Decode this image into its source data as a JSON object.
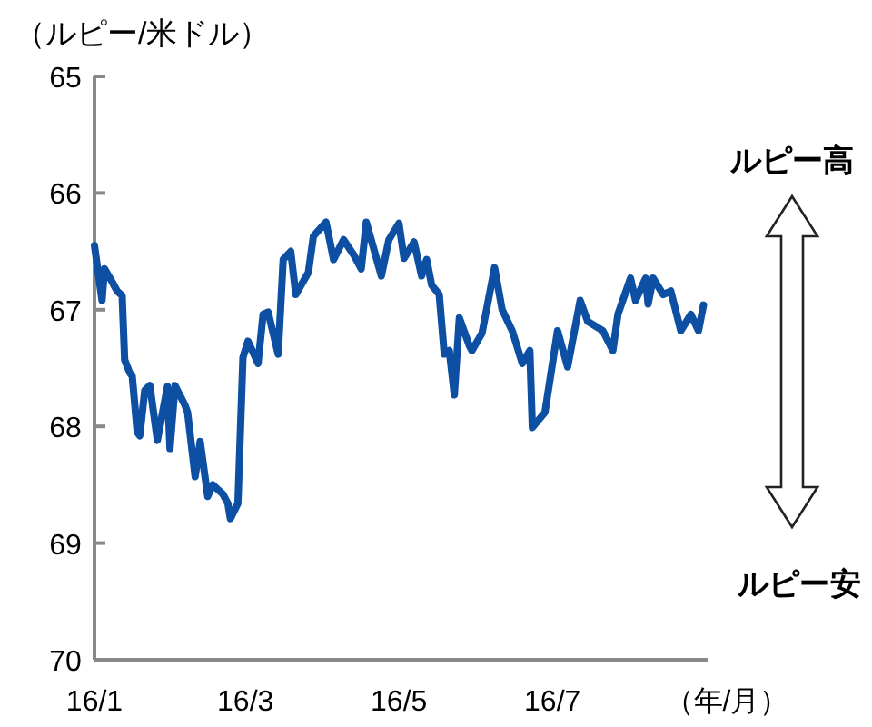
{
  "chart_data": {
    "type": "line",
    "ylabel": "（ルピー/米ドル）",
    "xlabel": "（年/月）",
    "annotations": [
      "ルピー高",
      "ルピー安"
    ],
    "xlim": [
      "--01-01",
      "--09-01"
    ],
    "xticks": [
      {
        "value": "--01-01",
        "label": "16/1"
      },
      {
        "value": "--03-01",
        "label": "16/3"
      },
      {
        "value": "--05-01",
        "label": "16/5"
      },
      {
        "value": "--07-01",
        "label": "16/7"
      }
    ],
    "ylim": [
      70,
      65
    ],
    "yticks": [
      65,
      66,
      67,
      68,
      69,
      70
    ],
    "grid": false,
    "marker": "none",
    "line_style": "solid",
    "series": [
      {
        "color": "#0d4fa3",
        "x": [
          "--01-01",
          "--01-04",
          "--01-05",
          "--01-08",
          "--01-10",
          "--01-12",
          "--01-13",
          "--01-15",
          "--01-16",
          "--01-18",
          "--01-19",
          "--01-21",
          "--01-23",
          "--01-26",
          "--01-30",
          "--01-31",
          "--02-02",
          "--02-06",
          "--02-07",
          "--02-10",
          "--02-12",
          "--02-15",
          "--02-17",
          "--02-21",
          "--02-23",
          "--02-24",
          "--02-27",
          "--02-29",
          "--03-02",
          "--03-06",
          "--03-08",
          "--03-10",
          "--03-14",
          "--03-16",
          "--03-19",
          "--03-21",
          "--03-26",
          "--03-28",
          "--04-02",
          "--04-05",
          "--04-09",
          "--04-13",
          "--04-16",
          "--04-18",
          "--04-24",
          "--04-27",
          "--05-01",
          "--05-03",
          "--05-07",
          "--05-10",
          "--05-12",
          "--05-14",
          "--05-17",
          "--05-19",
          "--05-21",
          "--05-23",
          "--05-25",
          "--05-29",
          "--05-30",
          "--06-03",
          "--06-08",
          "--06-11",
          "--06-15",
          "--06-19",
          "--06-22",
          "--06-23",
          "--06-28",
          "--07-03",
          "--07-07",
          "--07-10",
          "--07-12",
          "--07-15",
          "--07-21",
          "--07-25",
          "--07-27",
          "--08-01",
          "--08-03",
          "--08-07",
          "--08-08",
          "--08-10",
          "--08-14",
          "--08-17",
          "--08-21",
          "--08-25",
          "--08-28",
          "--08-30"
        ],
        "values": [
          66.45,
          66.92,
          66.65,
          66.76,
          66.84,
          66.88,
          67.43,
          67.54,
          67.57,
          68.05,
          68.08,
          67.69,
          67.65,
          68.12,
          67.66,
          68.19,
          67.65,
          67.82,
          67.88,
          68.43,
          68.13,
          68.6,
          68.5,
          68.58,
          68.66,
          68.79,
          68.66,
          67.41,
          67.27,
          67.46,
          67.04,
          67.02,
          67.38,
          66.57,
          66.5,
          66.87,
          66.68,
          66.37,
          66.25,
          66.57,
          66.4,
          66.53,
          66.65,
          66.25,
          66.71,
          66.4,
          66.26,
          66.56,
          66.42,
          66.71,
          66.57,
          66.79,
          66.87,
          67.38,
          67.35,
          67.73,
          67.07,
          67.31,
          67.35,
          67.2,
          66.64,
          67.0,
          67.18,
          67.46,
          67.35,
          68.01,
          67.88,
          67.18,
          67.49,
          67.15,
          66.92,
          67.1,
          67.18,
          67.35,
          67.04,
          66.73,
          66.92,
          66.73,
          66.95,
          66.73,
          66.87,
          66.84,
          67.18,
          67.04,
          67.18,
          66.96
        ]
      }
    ]
  }
}
